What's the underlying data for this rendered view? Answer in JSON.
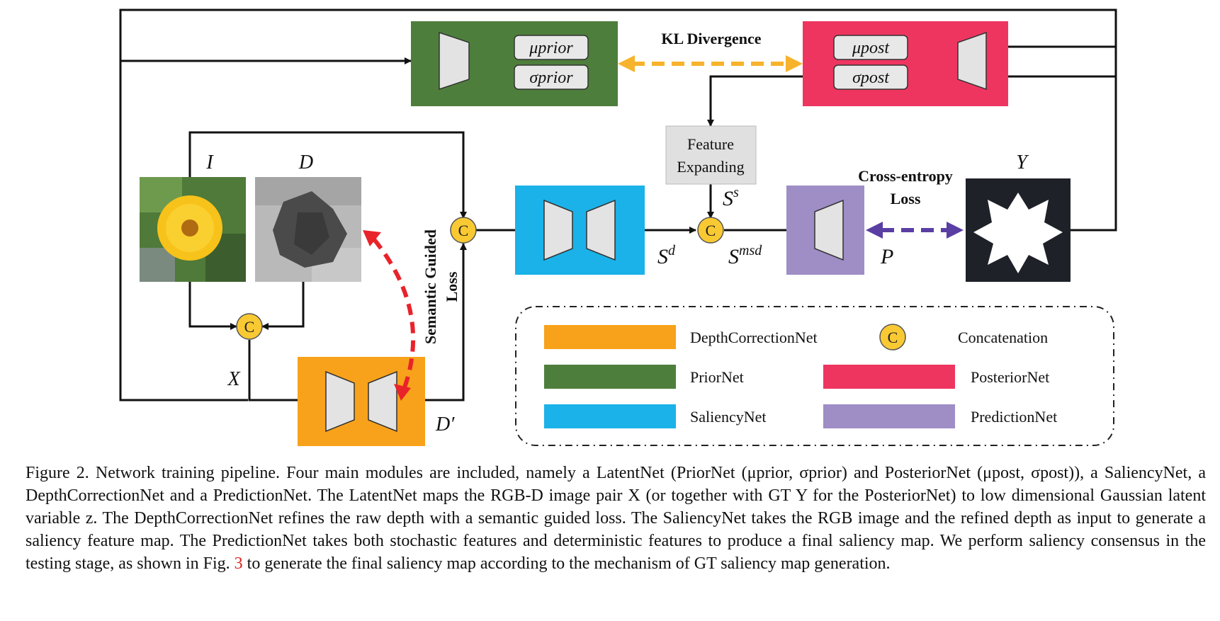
{
  "diagram": {
    "prior_mu": "μprior",
    "prior_sigma": "σprior",
    "post_mu": "μpost",
    "post_sigma": "σpost",
    "kl_label": "KL Divergence",
    "feature_expanding_line1": "Feature",
    "feature_expanding_line2": "Expanding",
    "ce_line1": "Cross-entropy",
    "ce_line2": "Loss",
    "sg_line1": "Semantic Guided",
    "sg_line2": "Loss",
    "var_I": "I",
    "var_D": "D",
    "var_X": "X",
    "var_Y": "Y",
    "var_P": "P",
    "var_Dprime": "D′",
    "var_Ss": "Ss",
    "var_Sd": "Sd",
    "var_Smsd": "Smsd",
    "concat_symbol": "C"
  },
  "legend": {
    "items": [
      {
        "label": "DepthCorrectionNet",
        "color": "#F8A21B"
      },
      {
        "label": "PriorNet",
        "color": "#4E7E3C"
      },
      {
        "label": "SaliencyNet",
        "color": "#1AB2E8"
      },
      {
        "label": "PosteriorNet",
        "color": "#EE3560"
      },
      {
        "label": "PredictionNet",
        "color": "#9F8DC6"
      },
      {
        "label": "Concatenation",
        "color": "#F9C933"
      }
    ]
  },
  "colors": {
    "depth_correction": "#F8A21B",
    "prior": "#4E7E3C",
    "saliency": "#1AB2E8",
    "posterior": "#EE3560",
    "prediction": "#9F8DC6",
    "concat": "#F9C933",
    "kl_arrow": "#F7B32B",
    "sg_arrow": "#E8232A",
    "ce_arrow": "#5A3EA3"
  },
  "caption": {
    "part1": "Figure 2. Network training pipeline.  Four main modules are included, namely a LatentNet (PriorNet (μprior, σprior) and PosteriorNet (μpost, σpost)), a SaliencyNet, a DepthCorrectionNet and a PredictionNet.  The LatentNet maps the RGB-D image pair X (or together with GT Y for the PosteriorNet) to low dimensional Gaussian latent variable z.  The DepthCorrectionNet refines the raw depth with a semantic guided loss.  The SaliencyNet takes the RGB image and the refined depth as input to generate a saliency feature map.  The PredictionNet takes both stochastic features and deterministic features to produce a final saliency map. We perform saliency consensus in the testing stage, as shown in Fig.",
    "ref": "3",
    "part2": "to generate the final saliency map according to the mechanism of GT saliency map generation."
  }
}
